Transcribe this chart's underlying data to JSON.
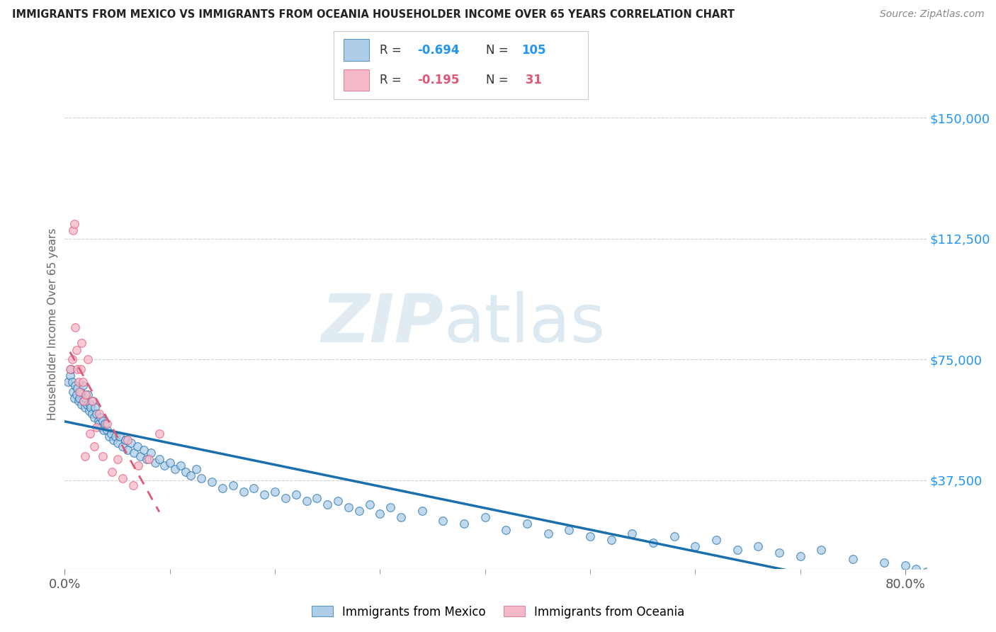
{
  "title": "IMMIGRANTS FROM MEXICO VS IMMIGRANTS FROM OCEANIA HOUSEHOLDER INCOME OVER 65 YEARS CORRELATION CHART",
  "source": "Source: ZipAtlas.com",
  "ylabel": "Householder Income Over 65 years",
  "ytick_labels": [
    "$37,500",
    "$75,000",
    "$112,500",
    "$150,000"
  ],
  "ytick_values": [
    37500,
    75000,
    112500,
    150000
  ],
  "ylim": [
    10000,
    162000
  ],
  "xlim": [
    0.0,
    0.82
  ],
  "xtick_left": "0.0%",
  "xtick_right": "80.0%",
  "watermark_zip": "ZIP",
  "watermark_atlas": "atlas",
  "mexico_color": "#aecde8",
  "oceania_color": "#f4b8c8",
  "mexico_line_color": "#1a6fad",
  "oceania_line_color": "#e05878",
  "r_mexico": "-0.694",
  "n_mexico": "105",
  "r_oceania": "-0.195",
  "n_oceania": " 31",
  "legend_label_mexico": "Immigrants from Mexico",
  "legend_label_oceania": "Immigrants from Oceania",
  "mexico_x": [
    0.003,
    0.005,
    0.006,
    0.007,
    0.008,
    0.009,
    0.01,
    0.011,
    0.012,
    0.013,
    0.014,
    0.015,
    0.016,
    0.017,
    0.018,
    0.019,
    0.02,
    0.021,
    0.022,
    0.023,
    0.024,
    0.025,
    0.026,
    0.027,
    0.028,
    0.029,
    0.03,
    0.032,
    0.033,
    0.034,
    0.035,
    0.036,
    0.037,
    0.038,
    0.04,
    0.042,
    0.044,
    0.046,
    0.048,
    0.05,
    0.052,
    0.055,
    0.058,
    0.06,
    0.063,
    0.066,
    0.069,
    0.072,
    0.075,
    0.078,
    0.082,
    0.086,
    0.09,
    0.095,
    0.1,
    0.105,
    0.11,
    0.115,
    0.12,
    0.125,
    0.13,
    0.14,
    0.15,
    0.16,
    0.17,
    0.18,
    0.19,
    0.2,
    0.21,
    0.22,
    0.23,
    0.24,
    0.25,
    0.26,
    0.27,
    0.28,
    0.29,
    0.3,
    0.31,
    0.32,
    0.34,
    0.36,
    0.38,
    0.4,
    0.42,
    0.44,
    0.46,
    0.48,
    0.5,
    0.52,
    0.54,
    0.56,
    0.58,
    0.6,
    0.62,
    0.64,
    0.66,
    0.68,
    0.7,
    0.72,
    0.75,
    0.78,
    0.8,
    0.81,
    0.82
  ],
  "mexico_y": [
    68000,
    70000,
    72000,
    68000,
    65000,
    63000,
    67000,
    64000,
    66000,
    62000,
    63000,
    65000,
    61000,
    67000,
    62000,
    60000,
    63000,
    61000,
    64000,
    59000,
    61000,
    60000,
    58000,
    62000,
    57000,
    60000,
    58000,
    56000,
    55000,
    57000,
    54000,
    56000,
    53000,
    55000,
    53000,
    51000,
    52000,
    50000,
    51000,
    49000,
    51000,
    48000,
    50000,
    47000,
    49000,
    46000,
    48000,
    45000,
    47000,
    44000,
    46000,
    43000,
    44000,
    42000,
    43000,
    41000,
    42000,
    40000,
    39000,
    41000,
    38000,
    37000,
    35000,
    36000,
    34000,
    35000,
    33000,
    34000,
    32000,
    33000,
    31000,
    32000,
    30000,
    31000,
    29000,
    28000,
    30000,
    27000,
    29000,
    26000,
    28000,
    25000,
    24000,
    26000,
    22000,
    24000,
    21000,
    22000,
    20000,
    19000,
    21000,
    18000,
    20000,
    17000,
    19000,
    16000,
    17000,
    15000,
    14000,
    16000,
    13000,
    12000,
    11000,
    10000,
    9000
  ],
  "oceania_x": [
    0.005,
    0.007,
    0.008,
    0.009,
    0.01,
    0.011,
    0.012,
    0.013,
    0.014,
    0.015,
    0.016,
    0.017,
    0.018,
    0.019,
    0.02,
    0.022,
    0.024,
    0.026,
    0.028,
    0.03,
    0.033,
    0.036,
    0.04,
    0.045,
    0.05,
    0.055,
    0.06,
    0.065,
    0.07,
    0.08,
    0.09
  ],
  "oceania_y": [
    72000,
    75000,
    115000,
    117000,
    85000,
    78000,
    72000,
    68000,
    65000,
    72000,
    80000,
    68000,
    62000,
    45000,
    64000,
    75000,
    52000,
    62000,
    48000,
    54000,
    58000,
    45000,
    55000,
    40000,
    44000,
    38000,
    50000,
    36000,
    42000,
    44000,
    52000
  ]
}
